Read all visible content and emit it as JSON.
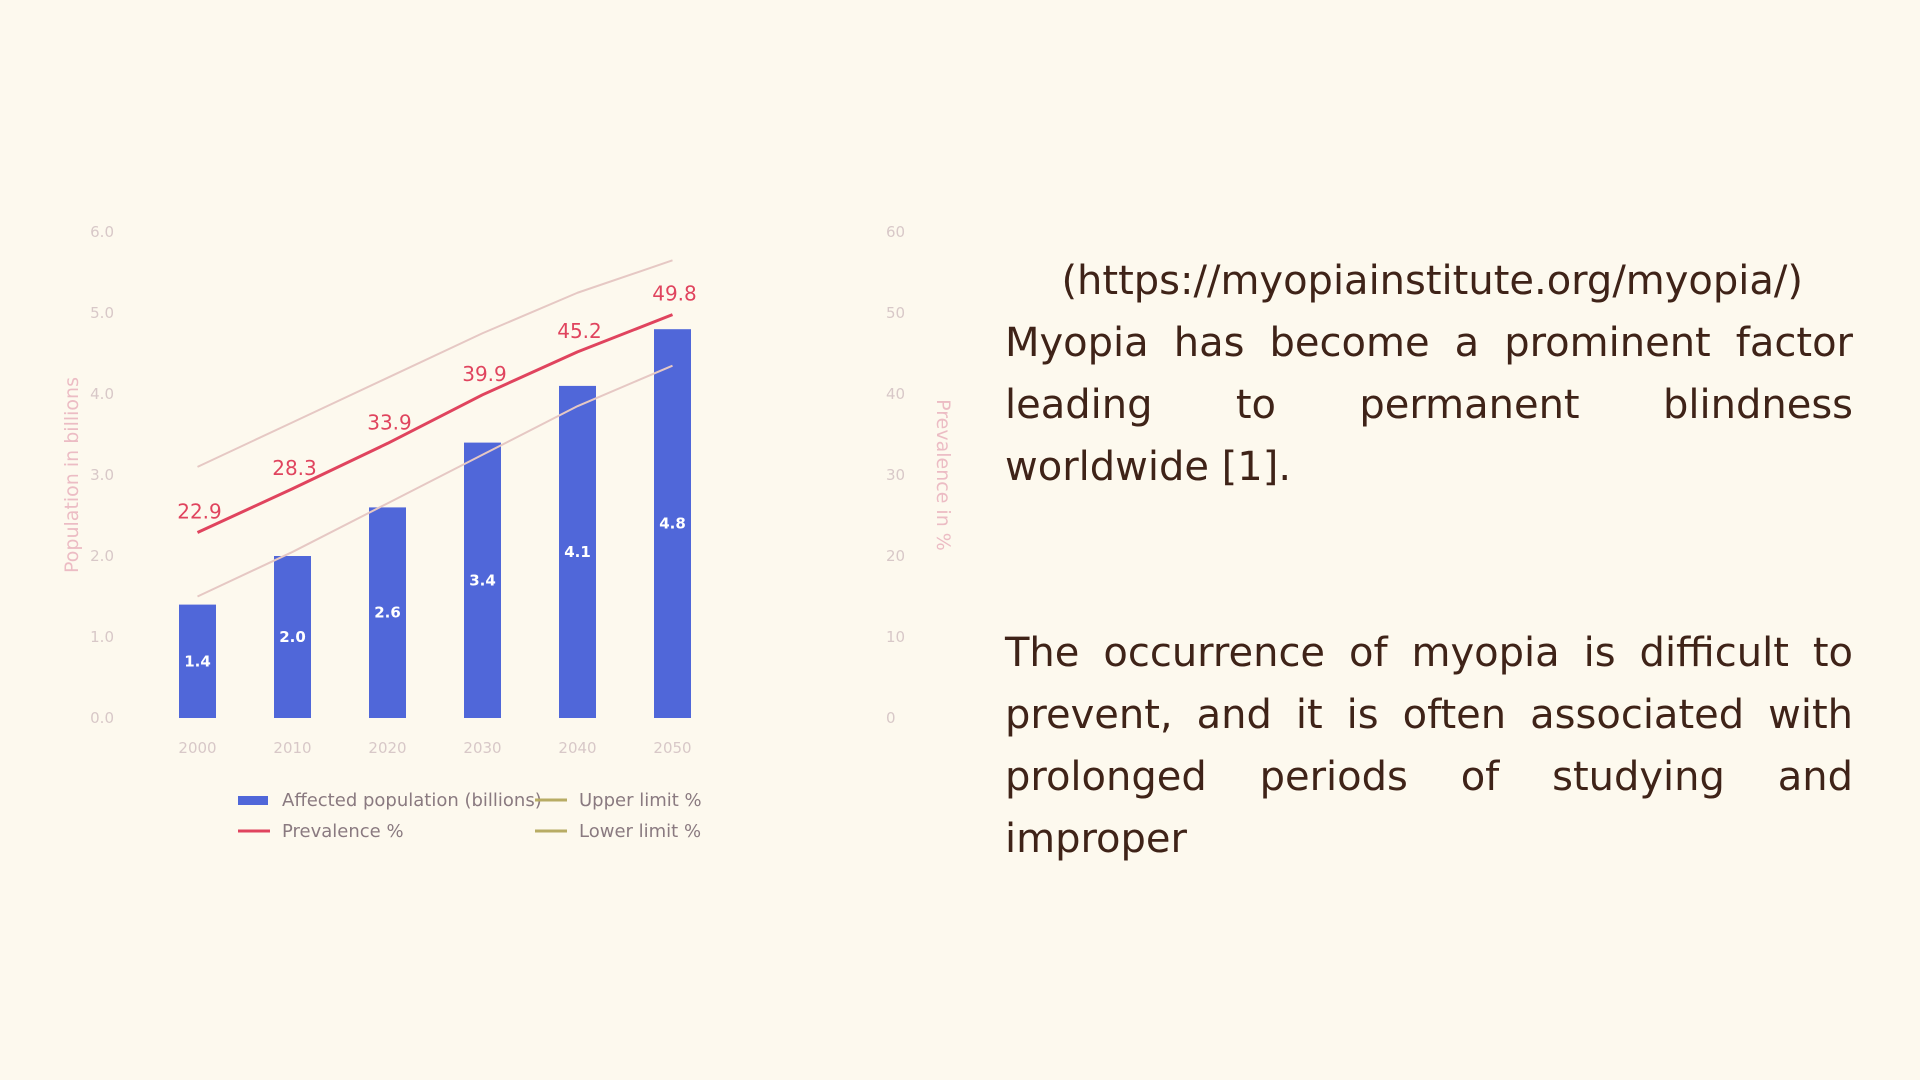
{
  "chart_data": {
    "type": "bar",
    "categories": [
      "2000",
      "2010",
      "2020",
      "2030",
      "2040",
      "2050"
    ],
    "series": [
      {
        "name": "Affected population (billions)",
        "type": "bar",
        "axis": "left",
        "color": "#5067d9",
        "values": [
          1.4,
          2.0,
          2.6,
          3.4,
          4.1,
          4.8
        ],
        "labels": [
          "1.4",
          "2.0",
          "2.6",
          "3.4",
          "4.1",
          "4.8"
        ]
      },
      {
        "name": "Prevalence %",
        "type": "line",
        "axis": "right",
        "color": "#e0445e",
        "values": [
          22.9,
          28.3,
          33.9,
          39.9,
          45.2,
          49.8
        ],
        "labels": [
          "22.9",
          "28.3",
          "33.9",
          "39.9",
          "45.2",
          "49.8"
        ]
      },
      {
        "name": "Upper limit %",
        "type": "line",
        "axis": "right",
        "color": "#e6c8c4",
        "values": [
          31.0,
          36.5,
          42.0,
          47.5,
          52.5,
          56.5
        ]
      },
      {
        "name": "Lower limit %",
        "type": "line",
        "axis": "right",
        "color": "#e6c8c4",
        "values": [
          15.0,
          20.5,
          26.5,
          32.5,
          38.5,
          43.5
        ]
      }
    ],
    "ylabel": "Population in billions",
    "ylabel_right": "Prevalence in %",
    "ylim": [
      0,
      6
    ],
    "ylim_right": [
      0,
      60
    ],
    "yticks": [
      "0.0",
      "1.0",
      "2.0",
      "3.0",
      "4.0",
      "5.0",
      "6.0"
    ],
    "yticks_right": [
      "0",
      "10",
      "20",
      "30",
      "40",
      "50",
      "60"
    ],
    "legend": [
      {
        "label": "Affected population (billions)",
        "marker": "bar",
        "color": "#5067d9"
      },
      {
        "label": "Upper limit %",
        "marker": "line",
        "color": "#b8ac64"
      },
      {
        "label": "Prevalence %",
        "marker": "line",
        "color": "#e0445e"
      },
      {
        "label": "Lower limit %",
        "marker": "line",
        "color": "#b8ac64"
      }
    ],
    "legend_position": "bottom",
    "grid": false
  },
  "text": {
    "url": "(https://myopiainstitute.org/myopia/)",
    "para1": "Myopia has become a prominent factor leading to permanent blindness worldwide [1].",
    "para2": "The occurrence of myopia is difficult to prevent, and it is often associated with prolonged periods of studying and improper"
  },
  "colors": {
    "background": "#fdf9ee",
    "text": "#3f2318"
  }
}
